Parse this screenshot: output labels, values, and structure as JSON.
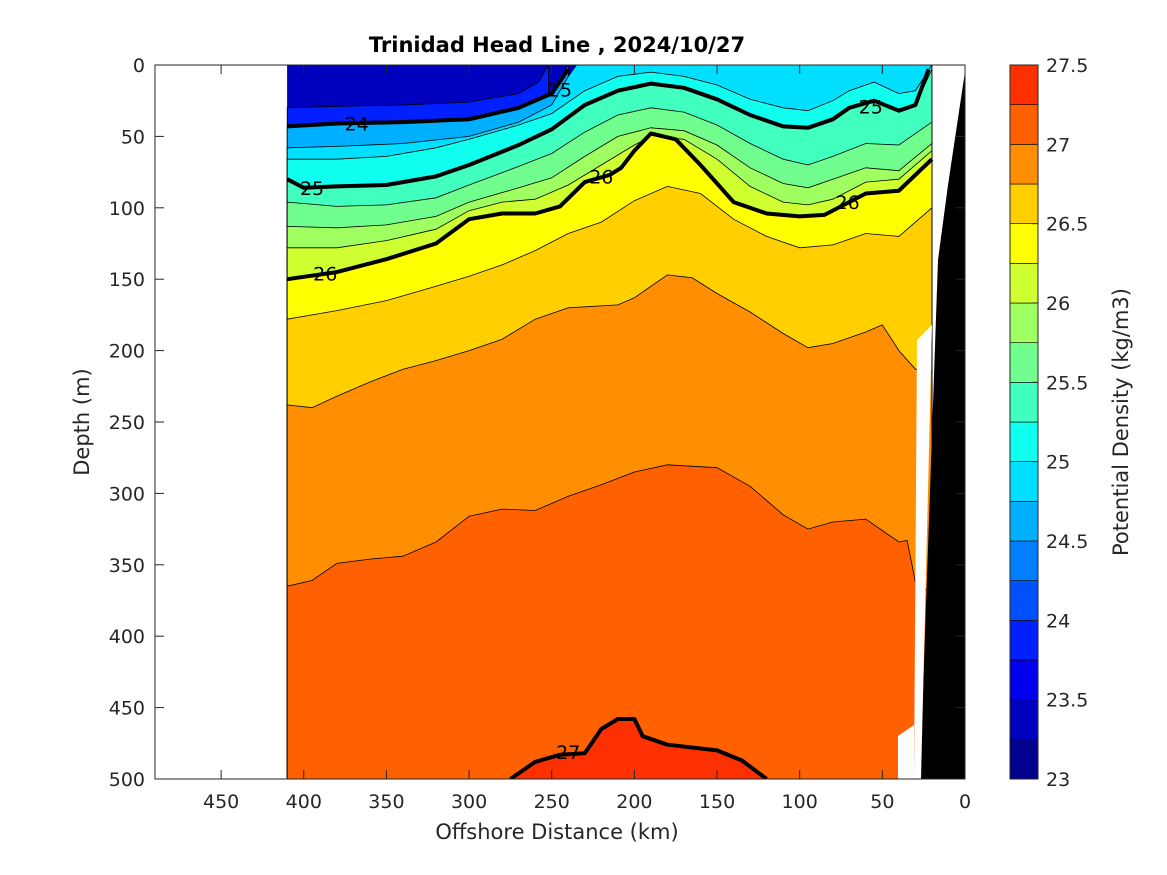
{
  "chart_data": {
    "type": "heatmap",
    "subtype": "filled-contour",
    "title": "Trinidad Head Line , 2024/10/27",
    "xlabel": "Offshore Distance (km)",
    "ylabel": "Depth (m)",
    "colorbar_label": "Potential Density (kg/m3)",
    "x_direction": "reversed",
    "xlim": [
      0,
      490
    ],
    "ylim": [
      0,
      500
    ],
    "y_direction": "reversed",
    "x_ticks": [
      "450",
      "400",
      "350",
      "300",
      "250",
      "200",
      "150",
      "100",
      "50",
      "0"
    ],
    "y_ticks": [
      "0",
      "50",
      "100",
      "150",
      "200",
      "250",
      "300",
      "350",
      "400",
      "450",
      "500"
    ],
    "colorbar_ticks": [
      "23",
      "23.5",
      "24",
      "24.5",
      "25",
      "25.5",
      "26",
      "26.5",
      "27",
      "27.5"
    ],
    "colorbar_levels": [
      23,
      23.25,
      23.5,
      23.75,
      24,
      24.25,
      24.5,
      24.75,
      25,
      25.25,
      25.5,
      25.75,
      26,
      26.25,
      26.5,
      26.75,
      27,
      27.25,
      27.5
    ],
    "colorbar_colors": [
      "#00008f",
      "#0000bf",
      "#0000ef",
      "#0020ff",
      "#0050ff",
      "#0080ff",
      "#00b0ff",
      "#00dfff",
      "#10ffef",
      "#40ffbf",
      "#70ff8f",
      "#9fff60",
      "#cfff30",
      "#ffff00",
      "#ffcf00",
      "#ff8f00",
      "#ff6000",
      "#ff3000",
      "#ef0000",
      "#bf0000"
    ],
    "data_x_extent_km": [
      20,
      410
    ],
    "bold_contours": [
      {
        "level": "24",
        "x": [
          410,
          380,
          340,
          300,
          270,
          250,
          240
        ],
        "y": [
          43,
          41,
          40,
          38,
          30,
          20,
          3
        ]
      },
      {
        "level": "25",
        "x": [
          410,
          400,
          380,
          350,
          320,
          300,
          270,
          250,
          230,
          210,
          190,
          170,
          150,
          130,
          110,
          95,
          80,
          70,
          55,
          40,
          30,
          22
        ],
        "y": [
          80,
          86,
          85,
          84,
          78,
          70,
          56,
          45,
          28,
          18,
          13,
          16,
          24,
          35,
          43,
          44,
          38,
          30,
          25,
          32,
          28,
          3
        ]
      },
      {
        "level": "26",
        "x": [
          410,
          380,
          350,
          320,
          300,
          280,
          260,
          245,
          230,
          215,
          208,
          200,
          190,
          175,
          160,
          140,
          120,
          100,
          85,
          60,
          40,
          20
        ],
        "y": [
          150,
          145,
          136,
          125,
          108,
          104,
          104,
          99,
          82,
          77,
          72,
          60,
          48,
          52,
          70,
          96,
          104,
          106,
          105,
          90,
          88,
          66
        ]
      },
      {
        "level": "27",
        "x": [
          275,
          260,
          245,
          230,
          220,
          210,
          200,
          195,
          180,
          150,
          135,
          120
        ],
        "y": [
          500,
          488,
          483,
          482,
          465,
          458,
          458,
          470,
          476,
          480,
          487,
          500
        ]
      }
    ],
    "contour_labels": [
      {
        "text": "24",
        "x": 368,
        "y": 41
      },
      {
        "text": "25",
        "x": 245,
        "y": 17
      },
      {
        "text": "25",
        "x": 57,
        "y": 29
      },
      {
        "text": "25",
        "x": 395,
        "y": 86
      },
      {
        "text": "26",
        "x": 220,
        "y": 78
      },
      {
        "text": "26",
        "x": 71,
        "y": 96
      },
      {
        "text": "26",
        "x": 387,
        "y": 146
      },
      {
        "text": "27",
        "x": 240,
        "y": 481
      }
    ],
    "bathymetry_region": "black wedge at nearshore (0-25 km) from surface to 500 m"
  }
}
